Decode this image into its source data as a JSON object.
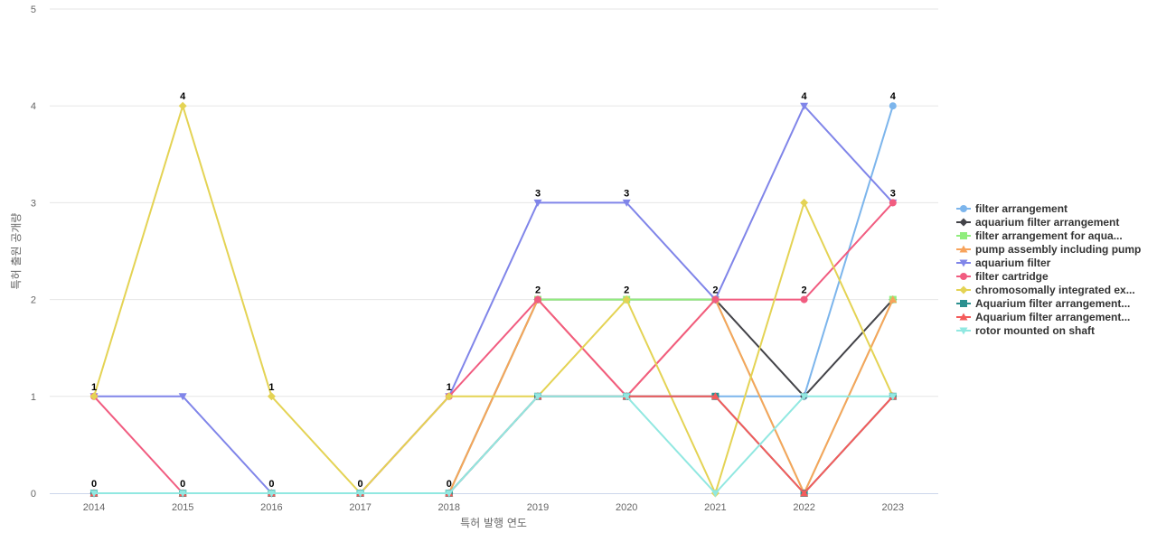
{
  "chart_data": {
    "type": "line",
    "xlabel": "특허 발행 연도",
    "ylabel": "특허 출원 공개량",
    "ylim": [
      0,
      5
    ],
    "yticks": [
      0,
      1,
      2,
      3,
      4,
      5
    ],
    "categories": [
      "2014",
      "2015",
      "2016",
      "2017",
      "2018",
      "2019",
      "2020",
      "2021",
      "2022",
      "2023"
    ],
    "grid": true,
    "legend_position": "right",
    "series": [
      {
        "name": "filter arrangement",
        "color": "#7cb5ec",
        "marker": "circle",
        "values": [
          0,
          0,
          0,
          0,
          0,
          1,
          1,
          1,
          1,
          4
        ]
      },
      {
        "name": "aquarium filter arrangement",
        "color": "#434348",
        "marker": "diamond",
        "values": [
          0,
          0,
          0,
          0,
          0,
          2,
          2,
          2,
          1,
          2
        ]
      },
      {
        "name": "filter arrangement for aqua...",
        "color": "#90ed7d",
        "marker": "square",
        "values": [
          0,
          0,
          0,
          0,
          0,
          2,
          2,
          2,
          0,
          2
        ]
      },
      {
        "name": "pump assembly including pump",
        "color": "#f7a35c",
        "marker": "triangle",
        "values": [
          0,
          0,
          0,
          0,
          0,
          2,
          1,
          2,
          0,
          2
        ]
      },
      {
        "name": "aquarium filter",
        "color": "#8085e9",
        "marker": "triangle-down",
        "values": [
          1,
          1,
          0,
          0,
          1,
          3,
          3,
          2,
          4,
          3
        ]
      },
      {
        "name": "filter cartridge",
        "color": "#f15c80",
        "marker": "circle",
        "values": [
          1,
          0,
          0,
          0,
          1,
          2,
          1,
          2,
          2,
          3
        ]
      },
      {
        "name": "chromosomally integrated ex...",
        "color": "#e4d354",
        "marker": "diamond",
        "values": [
          1,
          4,
          1,
          0,
          1,
          1,
          2,
          0,
          3,
          1
        ]
      },
      {
        "name": "Aquarium filter arrangement...",
        "color": "#2b908f",
        "marker": "square",
        "values": [
          0,
          0,
          0,
          0,
          0,
          1,
          1,
          1,
          0,
          1
        ]
      },
      {
        "name": "Aquarium filter arrangement...",
        "color": "#f45b5b",
        "marker": "triangle",
        "values": [
          0,
          0,
          0,
          0,
          0,
          1,
          1,
          1,
          0,
          1
        ]
      },
      {
        "name": "rotor mounted on shaft",
        "color": "#91e8e1",
        "marker": "triangle-down",
        "values": [
          0,
          0,
          0,
          0,
          0,
          1,
          1,
          0,
          1,
          1
        ]
      }
    ],
    "data_labels": [
      "1",
      "4",
      "1",
      "0",
      "1",
      "3",
      "3",
      "2",
      "4",
      "4"
    ],
    "data_labels_low": [
      "0",
      "0",
      "0",
      "",
      "0",
      "2",
      "2",
      "2",
      "2",
      "3"
    ]
  }
}
